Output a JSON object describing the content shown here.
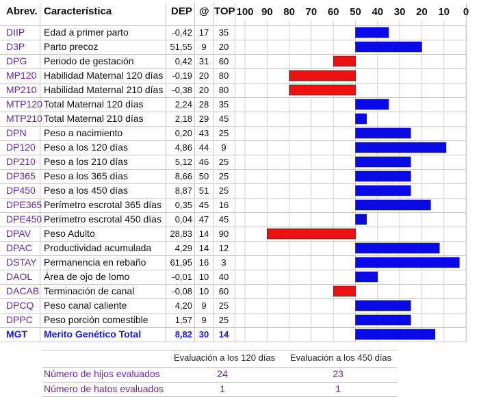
{
  "headers": {
    "abbr": "Abrev.",
    "desc": "Característica",
    "dep": "DEP",
    "at": "@",
    "top": "TOP"
  },
  "chart_data": {
    "type": "bar",
    "orientation": "horizontal",
    "axis": {
      "ticks": [
        100,
        90,
        80,
        70,
        60,
        50,
        40,
        30,
        20,
        10,
        0
      ],
      "reversed": true,
      "baseline": 50,
      "range": [
        100,
        0
      ]
    },
    "colors": {
      "above": "#0a0ae6",
      "below": "#ee1111"
    },
    "rows": [
      {
        "abbr": "DIIP",
        "desc": "Edad a primer parto",
        "dep": "-0,42",
        "at": "17",
        "top": "35"
      },
      {
        "abbr": "D3P",
        "desc": "Parto precoz",
        "dep": "51,55",
        "at": "9",
        "top": "20"
      },
      {
        "abbr": "DPG",
        "desc": "Periodo de gestación",
        "dep": "0,42",
        "at": "31",
        "top": "60"
      },
      {
        "abbr": "MP120",
        "desc": "Habilidad Maternal 120 días",
        "dep": "-0,19",
        "at": "20",
        "top": "80"
      },
      {
        "abbr": "MP210",
        "desc": "Habilidad Maternal 210 días",
        "dep": "-0,38",
        "at": "20",
        "top": "80"
      },
      {
        "abbr": "MTP120",
        "desc": "Total Maternal 120 días",
        "dep": "2,24",
        "at": "28",
        "top": "35"
      },
      {
        "abbr": "MTP210",
        "desc": "Total Maternal 210 días",
        "dep": "2,18",
        "at": "29",
        "top": "45"
      },
      {
        "abbr": "DPN",
        "desc": "Peso a nacimiento",
        "dep": "0,20",
        "at": "43",
        "top": "25"
      },
      {
        "abbr": "DP120",
        "desc": "Peso a los 120 días",
        "dep": "4,86",
        "at": "44",
        "top": "9"
      },
      {
        "abbr": "DP210",
        "desc": "Peso a los 210 días",
        "dep": "5,12",
        "at": "46",
        "top": "25"
      },
      {
        "abbr": "DP365",
        "desc": "Peso a los 365 días",
        "dep": "8,66",
        "at": "50",
        "top": "25"
      },
      {
        "abbr": "DP450",
        "desc": "Peso a los 450 días",
        "dep": "8,87",
        "at": "51",
        "top": "25"
      },
      {
        "abbr": "DPE365",
        "desc": "Perímetro escrotal 365 días",
        "dep": "0,35",
        "at": "45",
        "top": "16"
      },
      {
        "abbr": "DPE450",
        "desc": "Perímetro escrotal 450 días",
        "dep": "0,04",
        "at": "47",
        "top": "45"
      },
      {
        "abbr": "DPAV",
        "desc": "Peso Adulto",
        "dep": "28,83",
        "at": "14",
        "top": "90"
      },
      {
        "abbr": "DPAC",
        "desc": "Productividad acumulada",
        "dep": "4,29",
        "at": "14",
        "top": "12"
      },
      {
        "abbr": "DSTAY",
        "desc": "Permanencia en rebaño",
        "dep": "61,95",
        "at": "16",
        "top": "3"
      },
      {
        "abbr": "DAOL",
        "desc": "Área de ojo de lomo",
        "dep": "-0,01",
        "at": "10",
        "top": "40"
      },
      {
        "abbr": "DACAB",
        "desc": "Terminación de canal",
        "dep": "-0,08",
        "at": "10",
        "top": "60"
      },
      {
        "abbr": "DPCQ",
        "desc": "Peso canal caliente",
        "dep": "4,20",
        "at": "9",
        "top": "25"
      },
      {
        "abbr": "DPPC",
        "desc": "Peso porción comestible",
        "dep": "1,57",
        "at": "9",
        "top": "25"
      },
      {
        "abbr": "MGT",
        "desc": "Merito Genético Total",
        "dep": "8,82",
        "at": "30",
        "top": "14",
        "total": true
      }
    ]
  },
  "footer": {
    "col1_header": "Evaluación a los 120 días",
    "col2_header": "Evaluación a los 450 días",
    "rows": [
      {
        "label": "Número de hijos evaluados",
        "v120": "24",
        "v450": "23"
      },
      {
        "label": "Número de hatos evaluados",
        "v120": "1",
        "v450": "1"
      }
    ]
  }
}
